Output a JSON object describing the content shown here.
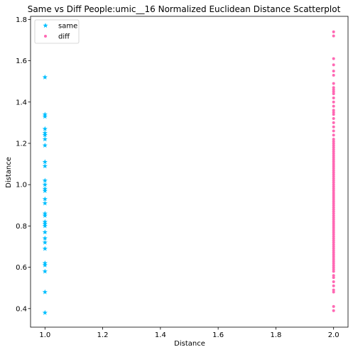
{
  "chart_data": {
    "type": "scatter",
    "title": "Same vs Diff People:umic__16 Normalized Euclidean Distance Scatterplot",
    "xlabel": "Distance",
    "ylabel": "Distance",
    "xlim": [
      0.95,
      2.05
    ],
    "ylim": [
      0.31,
      1.815
    ],
    "xticks": [
      1.0,
      1.2,
      1.4,
      1.6,
      1.8,
      2.0
    ],
    "yticks": [
      0.4,
      0.6,
      0.8,
      1.0,
      1.2,
      1.4,
      1.6,
      1.8
    ],
    "legend_position": "top-left",
    "grid": false,
    "series": [
      {
        "name": "same",
        "marker": "star",
        "color": "#00bfff",
        "x": 1.0,
        "y": [
          0.38,
          0.48,
          0.58,
          0.61,
          0.62,
          0.69,
          0.72,
          0.74,
          0.77,
          0.8,
          0.81,
          0.82,
          0.85,
          0.86,
          0.91,
          0.93,
          0.97,
          0.98,
          1.0,
          1.02,
          1.09,
          1.11,
          1.19,
          1.22,
          1.24,
          1.25,
          1.27,
          1.33,
          1.34,
          1.52
        ]
      },
      {
        "name": "diff",
        "marker": "circle",
        "color": "#ff69b4",
        "x": 2.0,
        "y": [
          0.39,
          0.41,
          0.48,
          0.49,
          0.51,
          0.53,
          0.55,
          0.56,
          0.58,
          0.59,
          0.6,
          0.61,
          0.62,
          0.63,
          0.64,
          0.65,
          0.66,
          0.67,
          0.68,
          0.69,
          0.7,
          0.71,
          0.72,
          0.73,
          0.74,
          0.75,
          0.76,
          0.77,
          0.78,
          0.79,
          0.8,
          0.81,
          0.82,
          0.83,
          0.84,
          0.85,
          0.86,
          0.87,
          0.88,
          0.89,
          0.9,
          0.91,
          0.92,
          0.93,
          0.94,
          0.95,
          0.96,
          0.97,
          0.98,
          0.99,
          1.0,
          1.01,
          1.02,
          1.03,
          1.04,
          1.05,
          1.06,
          1.07,
          1.08,
          1.09,
          1.1,
          1.11,
          1.12,
          1.13,
          1.14,
          1.15,
          1.16,
          1.17,
          1.18,
          1.19,
          1.2,
          1.21,
          1.22,
          1.24,
          1.26,
          1.28,
          1.3,
          1.32,
          1.34,
          1.35,
          1.36,
          1.38,
          1.4,
          1.42,
          1.44,
          1.45,
          1.46,
          1.47,
          1.49,
          1.53,
          1.55,
          1.58,
          1.61,
          1.72,
          1.74
        ]
      }
    ]
  }
}
